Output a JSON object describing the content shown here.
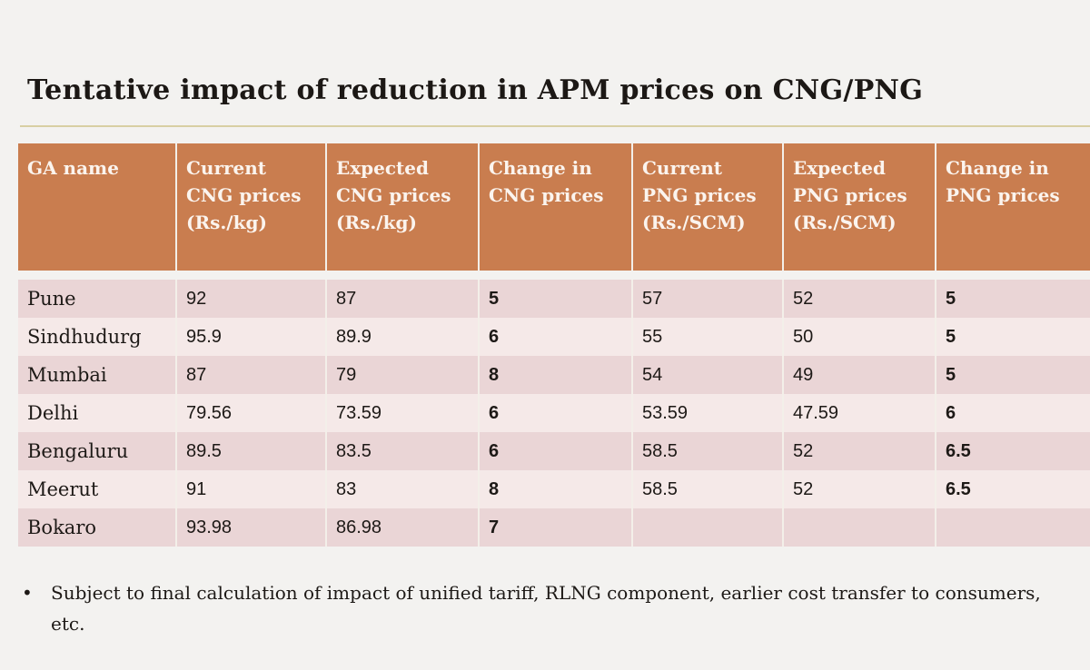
{
  "title": "Tentative impact of reduction in APM prices on CNG/PNG",
  "table": {
    "headers": [
      [
        "GA name"
      ],
      [
        "Current",
        "CNG prices",
        "(Rs./kg)"
      ],
      [
        "Expected",
        "CNG prices",
        "(Rs./kg)"
      ],
      [
        "Change in",
        "CNG prices"
      ],
      [
        "Current",
        "PNG prices",
        "(Rs./SCM)"
      ],
      [
        "Expected",
        "PNG prices",
        "(Rs./SCM)"
      ],
      [
        "Change in",
        "PNG prices"
      ]
    ],
    "rows": [
      [
        "Pune",
        "92",
        "87",
        "5",
        "57",
        "52",
        "5"
      ],
      [
        "Sindhudurg",
        "95.9",
        "89.9",
        "6",
        "55",
        "50",
        "5"
      ],
      [
        "Mumbai",
        "87",
        "79",
        "8",
        "54",
        "49",
        "5"
      ],
      [
        "Delhi",
        "79.56",
        "73.59",
        "6",
        "53.59",
        "47.59",
        "6"
      ],
      [
        "Bengaluru",
        "89.5",
        "83.5",
        "6",
        "58.5",
        "52",
        "6.5"
      ],
      [
        "Meerut",
        "91",
        "83",
        "8",
        "58.5",
        "52",
        "6.5"
      ],
      [
        "Bokaro",
        "93.98",
        "86.98",
        "7",
        "",
        "",
        ""
      ]
    ]
  },
  "note": {
    "bullet": "•",
    "text": "Subject to final calculation of impact of unified tariff, RLNG component, earlier cost transfer to consumers, etc."
  },
  "colors": {
    "header_bg": "#c97d4f",
    "row_dark": "#ead5d6",
    "row_light": "#f5e9e8"
  }
}
